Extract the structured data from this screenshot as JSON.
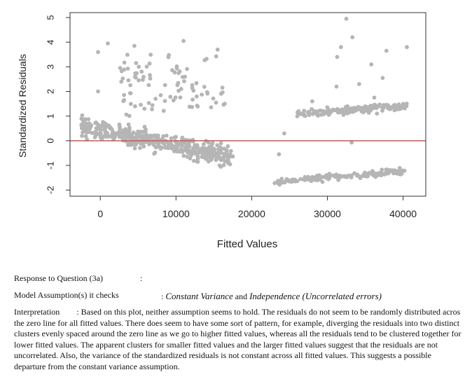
{
  "chart_data": {
    "type": "scatter",
    "xlabel": "Fitted Values",
    "ylabel": "Standardized Residuals",
    "xlim": [
      -4000,
      43000
    ],
    "ylim": [
      -2.25,
      5.2
    ],
    "x_ticks": [
      0,
      10000,
      20000,
      30000,
      40000
    ],
    "x_tick_labels": [
      "0",
      "10000",
      "20000",
      "30000",
      "40000"
    ],
    "y_ticks": [
      -2,
      -1,
      0,
      1,
      2,
      3,
      4,
      5
    ],
    "y_tick_labels": [
      "-2",
      "-1",
      "0",
      "1",
      "2",
      "3",
      "4",
      "5"
    ],
    "reference_line": {
      "y": 0,
      "color": "#d9534f"
    },
    "point_color": "#b5b5b5",
    "clusters_estimated": [
      {
        "x_range": [
          -2500,
          17500
        ],
        "y_trend": [
          0.6,
          -0.7
        ],
        "spread": 0.35,
        "points": 420
      },
      {
        "x_range": [
          2500,
          16500
        ],
        "y_range": [
          1.0,
          3.5
        ],
        "points": 90
      },
      {
        "x_range": [
          23000,
          40500
        ],
        "y_trend": [
          -1.65,
          -1.25
        ],
        "spread": 0.12,
        "points": 160
      },
      {
        "x_range": [
          26000,
          40500
        ],
        "y_trend": [
          1.1,
          1.4
        ],
        "spread": 0.15,
        "points": 170
      }
    ],
    "outliers_estimated": [
      {
        "x": -300,
        "y": 3.6
      },
      {
        "x": -300,
        "y": 2.0
      },
      {
        "x": 1000,
        "y": 3.95
      },
      {
        "x": 32500,
        "y": 4.95
      },
      {
        "x": 33300,
        "y": 4.2
      },
      {
        "x": 31800,
        "y": 3.8
      },
      {
        "x": 31300,
        "y": 3.4
      },
      {
        "x": 35800,
        "y": 3.1
      },
      {
        "x": 37800,
        "y": 3.65
      },
      {
        "x": 40500,
        "y": 3.8
      },
      {
        "x": 37300,
        "y": 2.55
      },
      {
        "x": 34200,
        "y": 2.3
      },
      {
        "x": 31200,
        "y": 2.2
      },
      {
        "x": 24300,
        "y": 0.3
      },
      {
        "x": 23600,
        "y": -0.55
      },
      {
        "x": 33200,
        "y": -0.07
      },
      {
        "x": 28000,
        "y": 1.6
      },
      {
        "x": 36200,
        "y": 1.75
      },
      {
        "x": 11000,
        "y": 4.05
      },
      {
        "x": 15500,
        "y": 3.7
      },
      {
        "x": 4500,
        "y": 3.85
      }
    ]
  },
  "document": {
    "question_label": "Response to Question (3a)",
    "question_colon": ":",
    "assumption_label": "Model Assumption(s) it checks",
    "assumption_colon": ":",
    "assumption_1": "Constant Variance",
    "assumption_and": "and",
    "assumption_2": "Independence (Uncorrelated errors)",
    "interpretation_label": "Interpretation",
    "interpretation_text": ": Based on this plot, neither assumption seems to hold. The residuals do not seem to be randomly distributed acros the zero line for all fitted values. There does seem to have some sort of pattern, for example, diverging the residuals into two distinct clusters evenly spaced around the zero line as we go to higher fitted values, whereas all the residuals tend to be clustered together for lower fitted values. The apparent clusters for smaller fitted values and the larger fitted values suggest that the residuals are not uncorrelated. Also, the variance of the standardized residuals is not constant across all fitted values. This suggests a possible departure from the constant variance assumption."
  }
}
